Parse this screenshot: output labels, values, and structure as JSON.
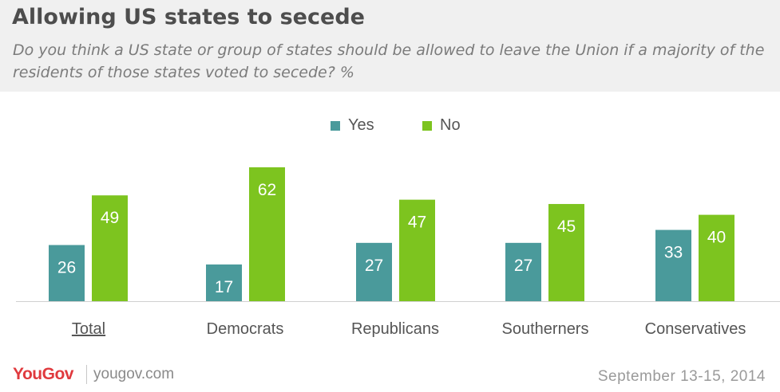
{
  "header": {
    "title": "Allowing US states to secede",
    "subtitle": "Do you think a US state or group of states should be allowed to leave the Union if a majority of the residents of those states voted to secede? %"
  },
  "colors": {
    "yes": "#4a9a9b",
    "no": "#7dc41f"
  },
  "legend": {
    "yes_label": "Yes",
    "no_label": "No"
  },
  "chart_data": {
    "type": "bar",
    "title": "Allowing US states to secede",
    "categories": [
      "Total",
      "Democrats",
      "Republicans",
      "Southerners",
      "Conservatives"
    ],
    "series": [
      {
        "name": "Yes",
        "values": [
          26,
          17,
          27,
          27,
          33
        ]
      },
      {
        "name": "No",
        "values": [
          49,
          62,
          47,
          45,
          40
        ]
      }
    ],
    "ylim": [
      0,
      100
    ],
    "grid": false,
    "legend_position": "top-center",
    "data_labels": true
  },
  "footer": {
    "brand": "YouGov",
    "url": "yougov.com",
    "date": "September 13-15, 2014"
  }
}
